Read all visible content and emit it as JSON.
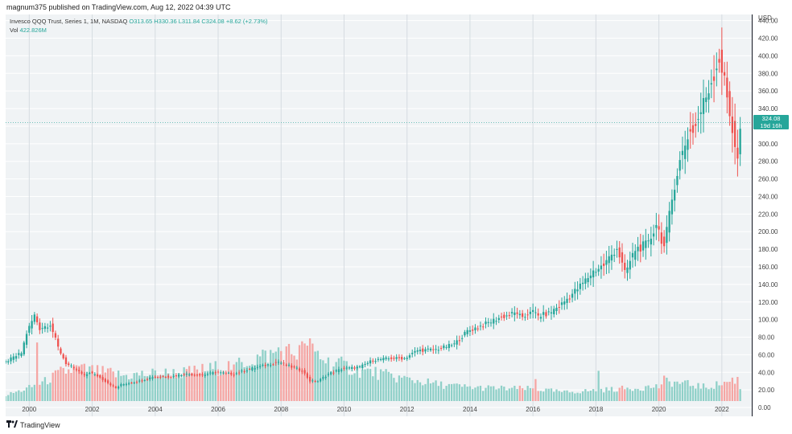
{
  "header": {
    "published_by": "magnum375 published on TradingView.com, Aug 12, 2022 04:39 UTC"
  },
  "legend": {
    "symbol_line": "Invesco QQQ Trust, Series 1, 1M, NASDAQ",
    "open": "O313.65",
    "high": "H330.36",
    "low": "L311.84",
    "close": "C324.08",
    "change": "+8.62 (+2.73%)",
    "vol_label": "Vol",
    "vol_value": "422.826M"
  },
  "price_badge": {
    "price": "324.08",
    "countdown": "19d 16h"
  },
  "footer": {
    "brand": "TradingView",
    "logo_icon": "tradingview-logo-icon"
  },
  "colors": {
    "up": "#26a69a",
    "down": "#ef5350",
    "up_volume": "#8fd0c8",
    "down_volume": "#f5a6a4",
    "background": "#f0f3f5"
  },
  "chart_data": {
    "type": "candlestick",
    "interval": "1M",
    "currency": "USD",
    "y_axis_label": "USD",
    "ylim": [
      -10,
      447
    ],
    "y_ticks": [
      "440.00",
      "420.00",
      "400.00",
      "380.00",
      "360.00",
      "340.00",
      "320.00",
      "300.00",
      "280.00",
      "260.00",
      "240.00",
      "220.00",
      "200.00",
      "180.00",
      "160.00",
      "140.00",
      "120.00",
      "100.00",
      "80.00",
      "60.00",
      "40.00",
      "20.00",
      "0.00"
    ],
    "x_ticks": [
      "2000",
      "2002",
      "2004",
      "2006",
      "2008",
      "2010",
      "2012",
      "2014",
      "2016",
      "2018",
      "2020",
      "2022"
    ],
    "x_range_years": [
      1999.25,
      2022.95
    ],
    "close_anchors": [
      [
        1999.25,
        52
      ],
      [
        1999.5,
        57
      ],
      [
        1999.75,
        62
      ],
      [
        1999.92,
        85
      ],
      [
        2000.17,
        105
      ],
      [
        2000.33,
        90
      ],
      [
        2000.67,
        95
      ],
      [
        2000.92,
        68
      ],
      [
        2001.17,
        50
      ],
      [
        2001.5,
        43
      ],
      [
        2001.75,
        36
      ],
      [
        2001.92,
        40
      ],
      [
        2002.17,
        36
      ],
      [
        2002.5,
        28
      ],
      [
        2002.75,
        22
      ],
      [
        2002.92,
        26
      ],
      [
        2003.5,
        30
      ],
      [
        2003.92,
        35
      ],
      [
        2004.5,
        35
      ],
      [
        2004.92,
        38
      ],
      [
        2005.5,
        37
      ],
      [
        2005.92,
        40
      ],
      [
        2006.5,
        38
      ],
      [
        2006.92,
        43
      ],
      [
        2007.5,
        48
      ],
      [
        2007.92,
        52
      ],
      [
        2008.33,
        46
      ],
      [
        2008.67,
        42
      ],
      [
        2008.92,
        30
      ],
      [
        2009.17,
        30
      ],
      [
        2009.5,
        38
      ],
      [
        2009.92,
        44
      ],
      [
        2010.5,
        46
      ],
      [
        2010.92,
        54
      ],
      [
        2011.5,
        56
      ],
      [
        2011.92,
        56
      ],
      [
        2012.33,
        65
      ],
      [
        2012.92,
        66
      ],
      [
        2013.5,
        72
      ],
      [
        2013.92,
        87
      ],
      [
        2014.5,
        95
      ],
      [
        2014.92,
        102
      ],
      [
        2015.5,
        108
      ],
      [
        2015.67,
        100
      ],
      [
        2015.92,
        111
      ],
      [
        2016.17,
        104
      ],
      [
        2016.5,
        107
      ],
      [
        2016.92,
        118
      ],
      [
        2017.5,
        138
      ],
      [
        2017.92,
        155
      ],
      [
        2018.25,
        162
      ],
      [
        2018.67,
        182
      ],
      [
        2018.92,
        152
      ],
      [
        2019.25,
        180
      ],
      [
        2019.67,
        186
      ],
      [
        2019.92,
        210
      ],
      [
        2020.17,
        182
      ],
      [
        2020.5,
        255
      ],
      [
        2020.67,
        280
      ],
      [
        2020.92,
        310
      ],
      [
        2021.17,
        320
      ],
      [
        2021.5,
        354
      ],
      [
        2021.92,
        398
      ],
      [
        2022.08,
        370
      ],
      [
        2022.33,
        318
      ],
      [
        2022.5,
        280
      ],
      [
        2022.58,
        316
      ],
      [
        2022.62,
        324
      ]
    ],
    "volume_ylim": [
      0,
      140
    ],
    "volume_anchors": [
      [
        1999.25,
        12
      ],
      [
        1999.92,
        25
      ],
      [
        2000.5,
        40
      ],
      [
        2001.0,
        58
      ],
      [
        2001.5,
        66
      ],
      [
        2002.0,
        62
      ],
      [
        2002.5,
        56
      ],
      [
        2003.0,
        52
      ],
      [
        2004.0,
        56
      ],
      [
        2005.0,
        58
      ],
      [
        2006.0,
        68
      ],
      [
        2006.5,
        72
      ],
      [
        2007.0,
        85
      ],
      [
        2007.5,
        92
      ],
      [
        2008.0,
        98
      ],
      [
        2008.5,
        100
      ],
      [
        2008.92,
        108
      ],
      [
        2009.5,
        80
      ],
      [
        2010.0,
        72
      ],
      [
        2010.5,
        62
      ],
      [
        2011.0,
        58
      ],
      [
        2011.5,
        50
      ],
      [
        2012.0,
        45
      ],
      [
        2013.0,
        34
      ],
      [
        2014.0,
        28
      ],
      [
        2015.0,
        26
      ],
      [
        2016.0,
        25
      ],
      [
        2017.0,
        18
      ],
      [
        2018.0,
        22
      ],
      [
        2019.0,
        26
      ],
      [
        2020.0,
        30
      ],
      [
        2020.25,
        40
      ],
      [
        2021.0,
        34
      ],
      [
        2021.5,
        28
      ],
      [
        2022.0,
        36
      ],
      [
        2022.33,
        42
      ],
      [
        2022.5,
        45
      ],
      [
        2022.62,
        18
      ]
    ],
    "volume_spikes": [
      [
        2000.25,
        120
      ],
      [
        2001.58,
        72
      ],
      [
        2002.58,
        68
      ],
      [
        2006.5,
        75
      ],
      [
        2007.92,
        110
      ],
      [
        2008.75,
        118
      ],
      [
        2016.08,
        45
      ],
      [
        2018.08,
        62
      ],
      [
        2020.17,
        52
      ],
      [
        2022.33,
        48
      ]
    ],
    "last_close": 324.08
  }
}
